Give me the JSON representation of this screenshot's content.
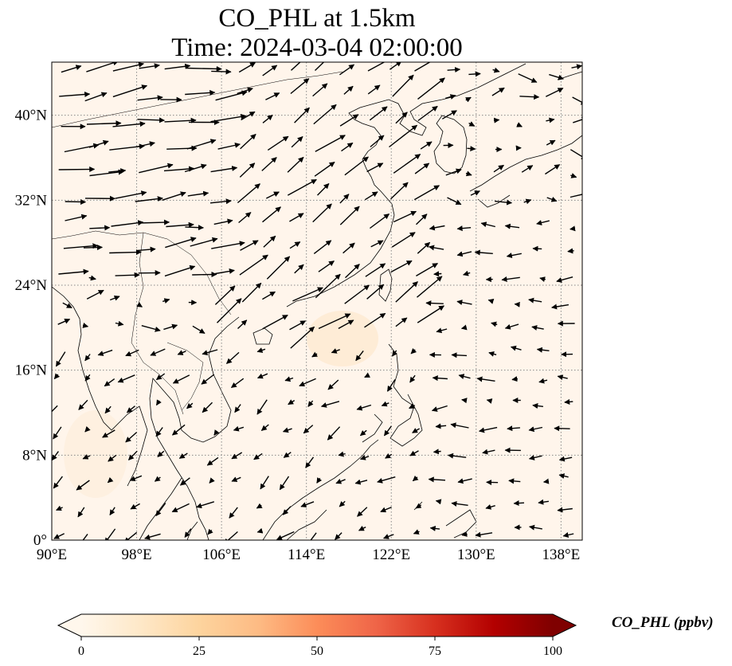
{
  "title": {
    "line1": "CO_PHL at 1.5km",
    "line2": "Time: 2024-03-04 02:00:00"
  },
  "map": {
    "extent": {
      "lon": [
        90,
        140
      ],
      "lat": [
        0,
        45
      ]
    },
    "lon_ticks": [
      {
        "value": 90,
        "label": "90°E"
      },
      {
        "value": 98,
        "label": "98°E"
      },
      {
        "value": 106,
        "label": "106°E"
      },
      {
        "value": 114,
        "label": "114°E"
      },
      {
        "value": 122,
        "label": "122°E"
      },
      {
        "value": 130,
        "label": "130°E"
      },
      {
        "value": 138,
        "label": "138°E"
      }
    ],
    "lat_ticks": [
      {
        "value": 0,
        "label": "0°"
      },
      {
        "value": 8,
        "label": "8°N"
      },
      {
        "value": 16,
        "label": "16°N"
      },
      {
        "value": 24,
        "label": "24°N"
      },
      {
        "value": 32,
        "label": "32°N"
      },
      {
        "value": 40,
        "label": "40°N"
      }
    ],
    "gridlines": true,
    "background_color": "#fff5eb",
    "coastline_color": "#000000",
    "wind_vectors_shown": true
  },
  "colorbar": {
    "label": "CO_PHL (ppbv)",
    "min": 0,
    "max": 100,
    "ticks": [
      {
        "value": 0,
        "label": "0"
      },
      {
        "value": 25,
        "label": "25"
      },
      {
        "value": 50,
        "label": "50"
      },
      {
        "value": 75,
        "label": "75"
      },
      {
        "value": 100,
        "label": "100"
      }
    ],
    "colormap": "OrRd",
    "colors": [
      "#fff7ec",
      "#fee8c8",
      "#fdd49e",
      "#fdbb84",
      "#fc8d59",
      "#ef6548",
      "#d7301f",
      "#b30000",
      "#7f0000"
    ],
    "extend": "both"
  }
}
